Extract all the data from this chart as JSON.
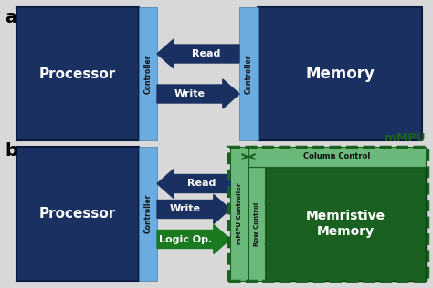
{
  "bg_color": "#d8d8d8",
  "dark_blue": "#1a3060",
  "light_blue": "#6aabe0",
  "dark_green": "#1a6020",
  "light_green": "#6ab87a",
  "arrow_blue": "#1a3060",
  "arrow_green": "#1a7a20",
  "white": "#ffffff",
  "black": "#000000",
  "label_a": "a",
  "label_b": "b",
  "processor_text": "Processor",
  "memory_text_a": "Memory",
  "memory_text_b": "Memristive\nMemory",
  "controller_text": "Controller",
  "mmpu_ctrl_text": "mMPU Controller",
  "row_ctrl_text": "Row Control",
  "col_ctrl_text": "Column Control",
  "mmpu_label": "mMPU",
  "read_text": "Read",
  "write_text": "Write",
  "logic_text": "Logic Op."
}
